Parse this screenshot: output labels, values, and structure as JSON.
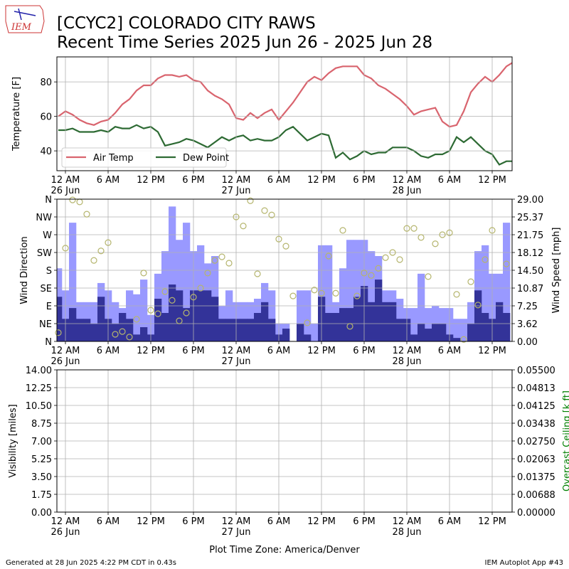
{
  "header": {
    "title": [
      "[CCYC2] COLORADO CITY RAWS",
      "Recent Time Series 2025 Jun 26 - 2025 Jun 28"
    ],
    "logo": "IEM"
  },
  "footer": {
    "left": "Generated at 28 Jun 2025 4:22 PM CDT in 0.43s",
    "right": "IEM Autoplot App #43",
    "xlabel": "Plot Time Zone: America/Denver"
  },
  "chart_data": [
    {
      "type": "line",
      "ylabel": "Temperature [F]",
      "xlim": [
        -1.2,
        62.8
      ],
      "ylim": [
        28.5,
        94.5
      ],
      "yticks": [
        40,
        60,
        80
      ],
      "grid": true,
      "legend": "lower left",
      "xticks": [
        {
          "value": 0,
          "label": "12 AM\n26 Jun"
        },
        {
          "value": 6,
          "label": "6 AM"
        },
        {
          "value": 12,
          "label": "12 PM"
        },
        {
          "value": 18,
          "label": "6 PM"
        },
        {
          "value": 24,
          "label": "12 AM\n27 Jun"
        },
        {
          "value": 30,
          "label": "6 AM"
        },
        {
          "value": 36,
          "label": "12 PM"
        },
        {
          "value": 42,
          "label": "6 PM"
        },
        {
          "value": 48,
          "label": "12 AM\n28 Jun"
        },
        {
          "value": 54,
          "label": "6 AM"
        },
        {
          "value": 60,
          "label": "12 PM"
        }
      ],
      "x": [
        -1,
        0,
        1,
        2,
        3,
        4,
        5,
        6,
        7,
        8,
        9,
        10,
        11,
        12,
        13,
        14,
        15,
        16,
        17,
        18,
        19,
        20,
        21,
        22,
        23,
        24,
        25,
        26,
        27,
        28,
        29,
        30,
        31,
        32,
        33,
        34,
        35,
        36,
        37,
        38,
        39,
        40,
        41,
        42,
        43,
        44,
        45,
        46,
        47,
        48,
        49,
        50,
        51,
        52,
        53,
        54,
        55,
        56,
        57,
        58,
        59,
        60,
        61,
        62,
        62.8
      ],
      "series": [
        {
          "name": "Air Temp",
          "color": "#d9646e",
          "values": [
            60,
            63,
            61,
            58,
            56,
            55,
            57,
            58,
            62,
            67,
            70,
            75,
            78,
            78,
            82,
            84,
            84,
            83,
            84,
            81,
            80,
            75,
            72,
            70,
            67,
            59,
            58,
            62,
            59,
            62,
            64,
            58,
            63,
            68,
            74,
            80,
            83,
            81,
            85,
            88,
            89,
            89,
            89,
            84,
            82,
            78,
            76,
            73,
            70,
            66,
            61,
            63,
            64,
            65,
            57,
            54,
            55,
            63,
            74,
            79,
            83,
            80,
            84,
            89,
            91
          ]
        },
        {
          "name": "Dew Point",
          "color": "#2d6a33",
          "values": [
            52,
            52,
            53,
            51,
            51,
            51,
            52,
            51,
            54,
            53,
            53,
            55,
            53,
            54,
            51,
            43,
            44,
            45,
            47,
            46,
            44,
            42,
            45,
            48,
            46,
            48,
            49,
            46,
            47,
            46,
            46,
            48,
            52,
            54,
            50,
            46,
            48,
            50,
            49,
            36,
            39,
            35,
            37,
            40,
            38,
            39,
            39,
            42,
            42,
            42,
            40,
            37,
            36,
            38,
            38,
            40,
            48,
            45,
            48,
            44,
            40,
            38,
            32,
            34,
            34
          ]
        }
      ]
    },
    {
      "type": "bar",
      "ylabel": "Wind Direction",
      "y2label": "Wind Speed [mph]",
      "xlim": [
        -1.2,
        62.8
      ],
      "ylim": [
        0,
        360
      ],
      "y2lim": [
        0,
        29
      ],
      "grid": true,
      "yticks": [
        {
          "value": 0,
          "label": "N"
        },
        {
          "value": 45,
          "label": "NE"
        },
        {
          "value": 90,
          "label": "E"
        },
        {
          "value": 135,
          "label": "SE"
        },
        {
          "value": 180,
          "label": "S"
        },
        {
          "value": 225,
          "label": "SW"
        },
        {
          "value": 270,
          "label": "W"
        },
        {
          "value": 315,
          "label": "NW"
        },
        {
          "value": 360,
          "label": "N"
        }
      ],
      "y2ticks": [
        {
          "value": 0,
          "label": "0.00"
        },
        {
          "value": 3.625,
          "label": "3.62"
        },
        {
          "value": 7.25,
          "label": "7.25"
        },
        {
          "value": 10.875,
          "label": "10.87"
        },
        {
          "value": 14.5,
          "label": "14.50"
        },
        {
          "value": 18.125,
          "label": "18.12"
        },
        {
          "value": 21.75,
          "label": "21.75"
        },
        {
          "value": 25.375,
          "label": "25.37"
        },
        {
          "value": 29,
          "label": "29.00"
        }
      ],
      "xticks": [
        {
          "value": 0,
          "label": "12 AM\n26 Jun"
        },
        {
          "value": 6,
          "label": "6 AM"
        },
        {
          "value": 12,
          "label": "12 PM"
        },
        {
          "value": 18,
          "label": "6 PM"
        },
        {
          "value": 24,
          "label": "12 AM\n27 Jun"
        },
        {
          "value": 30,
          "label": "6 AM"
        },
        {
          "value": 36,
          "label": "12 PM"
        },
        {
          "value": 42,
          "label": "6 PM"
        },
        {
          "value": 48,
          "label": "12 AM\n28 Jun"
        },
        {
          "value": 54,
          "label": "6 AM"
        },
        {
          "value": 60,
          "label": "12 PM"
        }
      ],
      "x": [
        -1,
        0,
        1,
        2,
        3,
        4,
        5,
        6,
        7,
        8,
        9,
        10,
        11,
        12,
        13,
        14,
        15,
        16,
        17,
        18,
        19,
        20,
        21,
        22,
        23,
        24,
        25,
        26,
        27,
        28,
        29,
        30,
        31,
        32,
        33,
        34,
        35,
        36,
        37,
        38,
        39,
        40,
        41,
        42,
        43,
        44,
        45,
        46,
        47,
        48,
        49,
        50,
        51,
        52,
        53,
        54,
        55,
        56,
        57,
        58,
        59,
        60,
        61,
        62
      ],
      "series": [
        {
          "type": "bar",
          "axis": "y2",
          "color": "#9999ff",
          "values": [
            14.9,
            10.4,
            24.2,
            8,
            8,
            8,
            11.9,
            10.4,
            8,
            6.8,
            10.4,
            9.6,
            12.6,
            5.4,
            13.8,
            18.4,
            27.5,
            20.7,
            24.2,
            18.4,
            19.6,
            15.9,
            17.4,
            7.2,
            10.4,
            8,
            8,
            8,
            8.7,
            11.9,
            10.4,
            3.6,
            3.6,
            0,
            10.4,
            10.4,
            3.6,
            19.6,
            19.6,
            8,
            14.9,
            20.7,
            20.7,
            20.7,
            18.4,
            17.4,
            10.4,
            10.4,
            8.7,
            6.8,
            6.8,
            13.8,
            6.8,
            7.2,
            6.8,
            6.8,
            4.6,
            4.6,
            8,
            18.4,
            19.6,
            13.8,
            13.8,
            24.2
          ]
        },
        {
          "type": "bar",
          "axis": "y2",
          "color": "#333399",
          "values": [
            9.1,
            4.6,
            6.8,
            4.6,
            4.6,
            3.6,
            9.1,
            4.6,
            3.6,
            5.8,
            4.6,
            1.4,
            2.9,
            1.4,
            8.7,
            5.8,
            11.6,
            10.4,
            6.8,
            10.4,
            10.4,
            10.4,
            9.1,
            4.6,
            4.6,
            4.6,
            4.6,
            4.6,
            5.8,
            8,
            4.6,
            1.4,
            2.6,
            0,
            3.6,
            1.4,
            0,
            9.1,
            5.8,
            5.8,
            6.8,
            6.8,
            9.1,
            11.3,
            8,
            12.6,
            8,
            8,
            4.6,
            4.6,
            1.4,
            3.6,
            2.6,
            3.6,
            3.6,
            1.4,
            0.7,
            0,
            3.6,
            10.4,
            5.8,
            4.6,
            8,
            5.8
          ]
        },
        {
          "type": "scatter",
          "axis": "y",
          "color": "#b5b56e",
          "values": [
            22,
            236,
            358,
            353,
            322,
            205,
            229,
            250,
            18,
            25,
            11,
            56,
            173,
            79,
            70,
            126,
            104,
            52,
            72,
            112,
            135,
            173,
            205,
            214,
            198,
            315,
            292,
            356,
            171,
            331,
            320,
            259,
            241,
            115,
            null,
            47,
            130,
            122,
            216,
            122,
            281,
            38,
            115,
            173,
            167,
            185,
            212,
            225,
            207,
            286,
            286,
            263,
            164,
            247,
            270,
            275,
            119,
            5,
            151,
            92,
            207,
            281,
            null,
            196
          ]
        }
      ]
    },
    {
      "type": "line",
      "ylabel": "Visibility [miles]",
      "y2label": "Overcast Ceiling [k ft]",
      "y2color": "#008000",
      "xlim": [
        -1.2,
        62.8
      ],
      "ylim": [
        0,
        14
      ],
      "y2lim": [
        0,
        0.055
      ],
      "grid": true,
      "yticks": [
        {
          "value": 0,
          "label": "0.00"
        },
        {
          "value": 1.75,
          "label": "1.75"
        },
        {
          "value": 3.5,
          "label": "3.50"
        },
        {
          "value": 5.25,
          "label": "5.25"
        },
        {
          "value": 7,
          "label": "7.00"
        },
        {
          "value": 8.75,
          "label": "8.75"
        },
        {
          "value": 10.5,
          "label": "10.50"
        },
        {
          "value": 12.25,
          "label": "12.25"
        },
        {
          "value": 14,
          "label": "14.00"
        }
      ],
      "y2ticks": [
        {
          "value": 0,
          "label": "0.00000"
        },
        {
          "value": 0.006875,
          "label": "0.00688"
        },
        {
          "value": 0.01375,
          "label": "0.01375"
        },
        {
          "value": 0.020625,
          "label": "0.02063"
        },
        {
          "value": 0.0275,
          "label": "0.02750"
        },
        {
          "value": 0.034375,
          "label": "0.03438"
        },
        {
          "value": 0.04125,
          "label": "0.04125"
        },
        {
          "value": 0.048125,
          "label": "0.04813"
        },
        {
          "value": 0.055,
          "label": "0.05500"
        }
      ],
      "xticks": [
        {
          "value": 0,
          "label": "12 AM\n26 Jun"
        },
        {
          "value": 6,
          "label": "6 AM"
        },
        {
          "value": 12,
          "label": "12 PM"
        },
        {
          "value": 18,
          "label": "6 PM"
        },
        {
          "value": 24,
          "label": "12 AM\n27 Jun"
        },
        {
          "value": 30,
          "label": "6 AM"
        },
        {
          "value": 36,
          "label": "12 PM"
        },
        {
          "value": 42,
          "label": "6 PM"
        },
        {
          "value": 48,
          "label": "12 AM\n28 Jun"
        },
        {
          "value": 54,
          "label": "6 AM"
        },
        {
          "value": 60,
          "label": "12 PM"
        }
      ],
      "series": []
    }
  ]
}
